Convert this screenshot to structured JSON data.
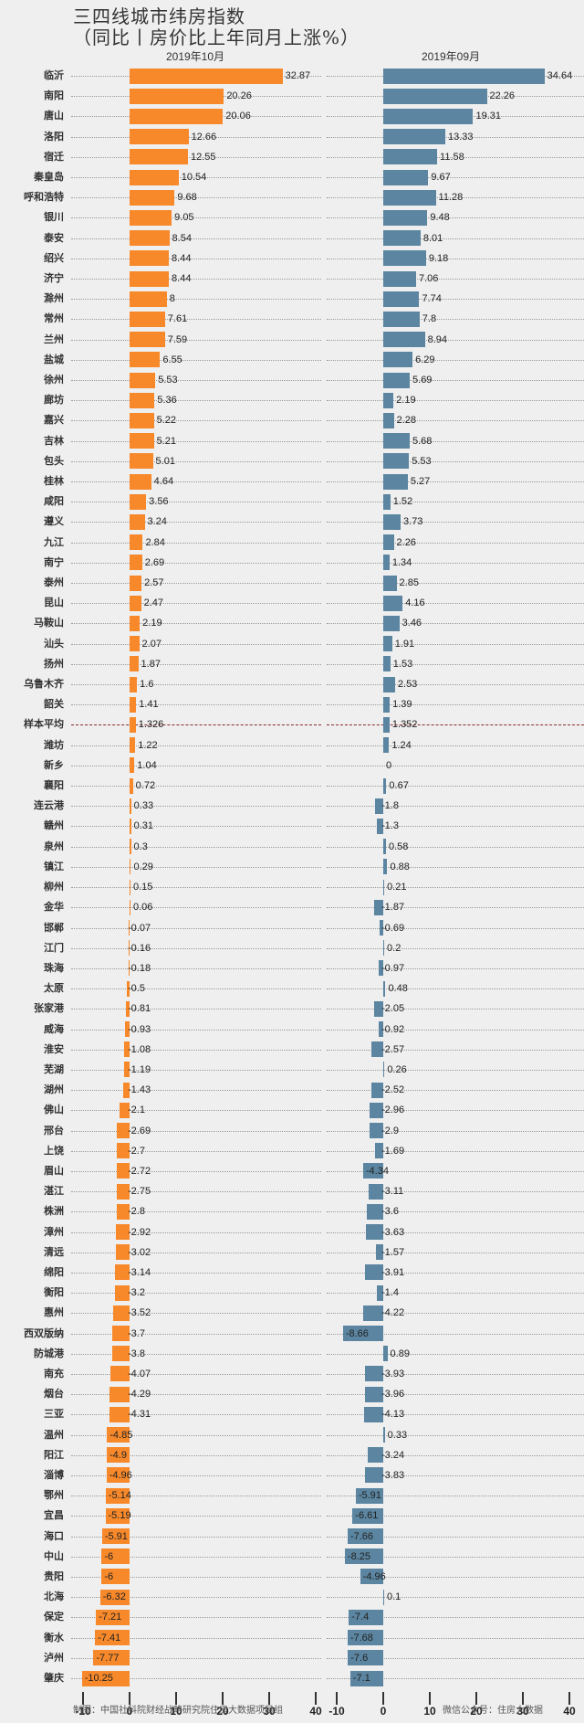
{
  "header": {
    "title_line1": "三四线城市纬房指数",
    "title_line2": "（同比丨房价比上年同月上涨%）"
  },
  "footer": {
    "left_credit": "制图：中国社科院财经战略研究院住房大数据项目组",
    "right_credit": "微信公众号：住房大数据"
  },
  "colors": {
    "left_bar": "#f7892b",
    "right_bar": "#5b85a0",
    "avg_line": "#8b2a2a",
    "background": "#efefef"
  },
  "chart_data": {
    "type": "bar",
    "orientation": "horizontal",
    "title": "三四线城市纬房指数（同比丨房价比上年同月上涨%）",
    "xlabel": "",
    "ylabel": "",
    "xlim": [
      -10,
      40
    ],
    "xticks": [
      -10,
      0,
      10,
      20,
      30,
      40
    ],
    "grid": "dotted row guides",
    "average_label": "样本平均",
    "categories": [
      "临沂",
      "南阳",
      "唐山",
      "洛阳",
      "宿迁",
      "秦皇岛",
      "呼和浩特",
      "银川",
      "泰安",
      "绍兴",
      "济宁",
      "滁州",
      "常州",
      "兰州",
      "盐城",
      "徐州",
      "廊坊",
      "嘉兴",
      "吉林",
      "包头",
      "桂林",
      "咸阳",
      "遵义",
      "九江",
      "南宁",
      "泰州",
      "昆山",
      "马鞍山",
      "汕头",
      "扬州",
      "乌鲁木齐",
      "韶关",
      "样本平均",
      "潍坊",
      "新乡",
      "襄阳",
      "连云港",
      "赣州",
      "泉州",
      "镇江",
      "柳州",
      "金华",
      "邯郸",
      "江门",
      "珠海",
      "太原",
      "张家港",
      "威海",
      "淮安",
      "芜湖",
      "湖州",
      "佛山",
      "邢台",
      "上饶",
      "眉山",
      "湛江",
      "株洲",
      "漳州",
      "清远",
      "绵阳",
      "衡阳",
      "惠州",
      "西双版纳",
      "防城港",
      "南充",
      "烟台",
      "三亚",
      "温州",
      "阳江",
      "淄博",
      "鄂州",
      "宜昌",
      "海口",
      "中山",
      "贵阳",
      "北海",
      "保定",
      "衡水",
      "泸州",
      "肇庆"
    ],
    "series": [
      {
        "name": "2019年10月",
        "color": "#f7892b",
        "values": [
          32.87,
          20.26,
          20.06,
          12.66,
          12.55,
          10.54,
          9.68,
          9.05,
          8.54,
          8.44,
          8.44,
          8,
          7.61,
          7.59,
          6.55,
          5.53,
          5.36,
          5.22,
          5.21,
          5.01,
          4.64,
          3.56,
          3.24,
          2.84,
          2.69,
          2.57,
          2.47,
          2.19,
          2.07,
          1.87,
          1.6,
          1.41,
          1.326,
          1.22,
          1.04,
          0.72,
          0.33,
          0.31,
          0.3,
          0.29,
          0.15,
          0.06,
          -0.07,
          -0.16,
          -0.18,
          -0.5,
          -0.81,
          -0.93,
          -1.08,
          -1.19,
          -1.43,
          -2.1,
          -2.69,
          -2.7,
          -2.72,
          -2.75,
          -2.8,
          -2.92,
          -3.02,
          -3.14,
          -3.2,
          -3.52,
          -3.7,
          -3.8,
          -4.07,
          -4.29,
          -4.31,
          -4.85,
          -4.9,
          -4.96,
          -5.14,
          -5.19,
          -5.91,
          -6,
          -6,
          -6.32,
          -7.21,
          -7.41,
          -7.77,
          -10.25
        ]
      },
      {
        "name": "2019年09月",
        "color": "#5b85a0",
        "values": [
          34.64,
          22.26,
          19.31,
          13.33,
          11.58,
          9.67,
          11.28,
          9.48,
          8.01,
          9.18,
          7.06,
          7.74,
          7.8,
          8.94,
          6.29,
          5.69,
          2.19,
          2.28,
          5.68,
          5.53,
          5.27,
          1.52,
          3.73,
          2.26,
          1.34,
          2.85,
          4.16,
          3.46,
          1.91,
          1.53,
          2.53,
          1.39,
          1.352,
          1.24,
          0,
          0.67,
          -1.8,
          -1.3,
          0.58,
          0.88,
          0.21,
          -1.87,
          -0.69,
          0.2,
          -0.97,
          0.48,
          -2.05,
          -0.92,
          -2.57,
          0.26,
          -2.52,
          -2.96,
          -2.9,
          -1.69,
          -4.34,
          -3.11,
          -3.6,
          -3.63,
          -1.57,
          -3.91,
          -1.4,
          -4.22,
          -8.66,
          0.89,
          -3.93,
          -3.96,
          -4.13,
          0.33,
          -3.24,
          -3.83,
          -5.91,
          -6.61,
          -7.66,
          -8.25,
          -4.96,
          0.1,
          -7.4,
          -7.68,
          -7.6,
          -7.1
        ]
      }
    ]
  }
}
